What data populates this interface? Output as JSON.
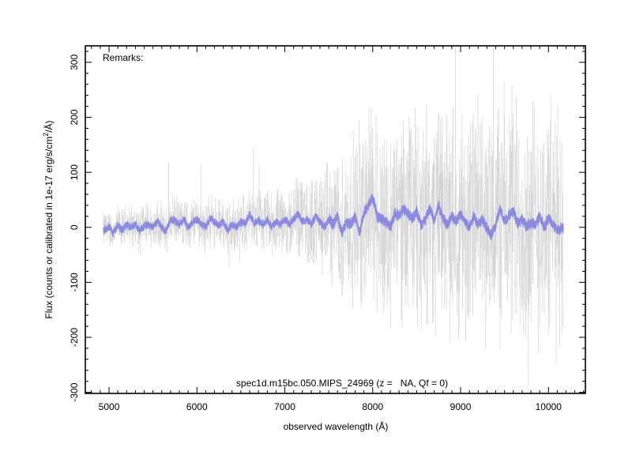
{
  "chart_data": {
    "type": "line",
    "title": "",
    "xlabel": "observed wavelength (Å)",
    "ylabel_parts": {
      "prefix": "Flux (counts or calibrated in 1e-17 erg/s/cm",
      "sup": "2",
      "suffix": "/Å)"
    },
    "xlim": [
      4730,
      10420
    ],
    "ylim": [
      -302,
      330
    ],
    "x_ticks": [
      5000,
      6000,
      7000,
      8000,
      9000,
      10000
    ],
    "x_tick_labels": [
      "5000",
      "6000",
      "7000",
      "8000",
      "9000",
      "10000"
    ],
    "y_ticks": [
      -300,
      -200,
      -100,
      0,
      100,
      200,
      300
    ],
    "y_tick_labels": [
      "-300",
      "-200",
      "-100",
      "0",
      "100",
      "200",
      "300"
    ],
    "grid": false,
    "legend": "none",
    "annotations": {
      "remarks": "Remarks:",
      "object_line": "spec1d.m15bc.050.MIPS_24969 (z =   NA, Qf = 0)"
    },
    "series": [
      {
        "role": "raw",
        "color": "#d0d0d0",
        "x_range": [
          4935,
          10170
        ],
        "noise_envelope": {
          "x": [
            4935,
            5500,
            6000,
            6500,
            7000,
            7500,
            8000,
            8500,
            9000,
            9500,
            10170
          ],
          "amplitude": [
            40,
            50,
            55,
            60,
            75,
            120,
            220,
            220,
            240,
            280,
            260
          ]
        }
      },
      {
        "role": "smoothed",
        "color": "#8a8ae0",
        "points": [
          [
            4940,
            -5
          ],
          [
            5000,
            0
          ],
          [
            5050,
            -10
          ],
          [
            5100,
            3
          ],
          [
            5150,
            -5
          ],
          [
            5200,
            5
          ],
          [
            5250,
            0
          ],
          [
            5300,
            5
          ],
          [
            5350,
            -8
          ],
          [
            5400,
            2
          ],
          [
            5450,
            5
          ],
          [
            5500,
            0
          ],
          [
            5550,
            10
          ],
          [
            5600,
            0
          ],
          [
            5650,
            -8
          ],
          [
            5700,
            15
          ],
          [
            5750,
            12
          ],
          [
            5800,
            5
          ],
          [
            5850,
            15
          ],
          [
            5900,
            0
          ],
          [
            5950,
            10
          ],
          [
            6000,
            15
          ],
          [
            6050,
            5
          ],
          [
            6100,
            0
          ],
          [
            6150,
            15
          ],
          [
            6200,
            10
          ],
          [
            6250,
            2
          ],
          [
            6300,
            10
          ],
          [
            6350,
            -5
          ],
          [
            6400,
            5
          ],
          [
            6450,
            0
          ],
          [
            6500,
            10
          ],
          [
            6550,
            5
          ],
          [
            6600,
            25
          ],
          [
            6650,
            8
          ],
          [
            6700,
            12
          ],
          [
            6750,
            5
          ],
          [
            6800,
            15
          ],
          [
            6850,
            0
          ],
          [
            6900,
            10
          ],
          [
            6950,
            5
          ],
          [
            7000,
            15
          ],
          [
            7050,
            5
          ],
          [
            7100,
            15
          ],
          [
            7150,
            25
          ],
          [
            7200,
            10
          ],
          [
            7250,
            15
          ],
          [
            7300,
            5
          ],
          [
            7350,
            20
          ],
          [
            7400,
            10
          ],
          [
            7450,
            0
          ],
          [
            7500,
            15
          ],
          [
            7550,
            5
          ],
          [
            7600,
            20
          ],
          [
            7650,
            -10
          ],
          [
            7700,
            10
          ],
          [
            7750,
            5
          ],
          [
            7800,
            20
          ],
          [
            7850,
            -10
          ],
          [
            7900,
            25
          ],
          [
            7950,
            40
          ],
          [
            8000,
            55
          ],
          [
            8050,
            20
          ],
          [
            8100,
            15
          ],
          [
            8150,
            10
          ],
          [
            8200,
            0
          ],
          [
            8250,
            25
          ],
          [
            8300,
            20
          ],
          [
            8350,
            35
          ],
          [
            8400,
            25
          ],
          [
            8450,
            15
          ],
          [
            8500,
            30
          ],
          [
            8550,
            5
          ],
          [
            8600,
            15
          ],
          [
            8650,
            35
          ],
          [
            8700,
            10
          ],
          [
            8750,
            40
          ],
          [
            8800,
            15
          ],
          [
            8850,
            5
          ],
          [
            8900,
            20
          ],
          [
            8950,
            10
          ],
          [
            9000,
            25
          ],
          [
            9050,
            10
          ],
          [
            9100,
            0
          ],
          [
            9150,
            20
          ],
          [
            9200,
            5
          ],
          [
            9250,
            15
          ],
          [
            9300,
            0
          ],
          [
            9350,
            -15
          ],
          [
            9400,
            5
          ],
          [
            9450,
            35
          ],
          [
            9500,
            10
          ],
          [
            9550,
            20
          ],
          [
            9600,
            30
          ],
          [
            9650,
            5
          ],
          [
            9700,
            15
          ],
          [
            9750,
            0
          ],
          [
            9800,
            10
          ],
          [
            9850,
            5
          ],
          [
            9900,
            20
          ],
          [
            9950,
            0
          ],
          [
            10000,
            15
          ],
          [
            10050,
            5
          ],
          [
            10100,
            -5
          ],
          [
            10170,
            0
          ]
        ]
      }
    ]
  }
}
